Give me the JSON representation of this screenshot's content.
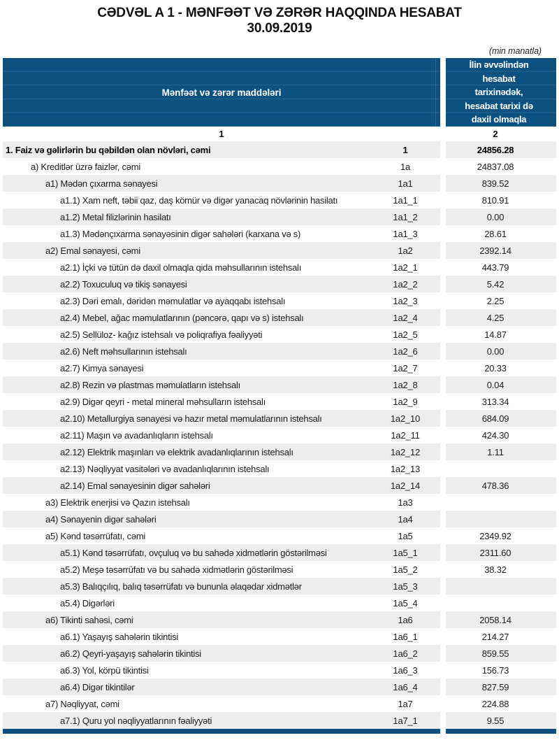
{
  "title": "CƏDVƏL A 1 - MƏNFƏƏT VƏ ZƏRƏR HAQQINDA HESABAT",
  "report_date": "30.09.2019",
  "units_note": "(min manatla)",
  "colors": {
    "header_bg": "#0d5181",
    "row_shade": "#ededed",
    "text": "#1c1c1c"
  },
  "table": {
    "items_header": "Mənfəət və zərər maddələri",
    "value_header_lines": [
      "İlin əvvəlindən",
      "hesabat",
      "tarixinədək,",
      "hesabat tarixi də",
      "daxil olmaqla"
    ],
    "column_numbers": {
      "items": "1",
      "value": "2"
    },
    "rows": [
      {
        "label": "1. Faiz və gəlirlərin bu qəbildən olan növləri, cəmi",
        "code": "1",
        "value": "24856.28",
        "level": 0
      },
      {
        "label": "a) Kreditlər üzrə faizlər, cəmi",
        "code": "1a",
        "value": "24837.08",
        "level": 1
      },
      {
        "label": "a1) Mədən çıxarma sənayesi",
        "code": "1a1",
        "value": "839.52",
        "level": 2
      },
      {
        "label": "a1.1) Xam neft, təbii qaz, daş kömür və digər yanacaq növlərinin hasilatı",
        "code": "1a1_1",
        "value": "810.91",
        "level": 3
      },
      {
        "label": "a1.2) Metal filizlərinin hasilatı",
        "code": "1a1_2",
        "value": "0.00",
        "level": 3
      },
      {
        "label": "a1.3) Mədənçıxarma sənayəsinin digər sahələri (karxana və s)",
        "code": "1a1_3",
        "value": "28.61",
        "level": 3
      },
      {
        "label": "a2) Emal sənayesi, cəmi",
        "code": "1a2",
        "value": "2392.14",
        "level": 2
      },
      {
        "label": "a2.1) İçki və tütün də daxil olmaqla qida məhsullarının istehsalı",
        "code": "1a2_1",
        "value": "443.79",
        "level": 3
      },
      {
        "label": "a2.2) Toxuculuq və tikiş sənayesi",
        "code": "1a2_2",
        "value": "5.42",
        "level": 3
      },
      {
        "label": "a2.3) Dəri emalı, dəridən məmulatlar və ayaqqabı istehsalı",
        "code": "1a2_3",
        "value": "2.25",
        "level": 3
      },
      {
        "label": "a2.4) Mebel, ağac məmulatlarının (pəncərə, qapı və s) istehsalı",
        "code": "1a2_4",
        "value": "4.25",
        "level": 3
      },
      {
        "label": "a2.5) Sellüloz- kağız istehsalı və poliqrafiya fəaliyyəti",
        "code": "1a2_5",
        "value": "14.87",
        "level": 3
      },
      {
        "label": "a2.6) Neft məhsullarının istehsalı",
        "code": "1a2_6",
        "value": "0.00",
        "level": 3
      },
      {
        "label": "a2.7) Kimya sənayesi",
        "code": "1a2_7",
        "value": "20.33",
        "level": 3
      },
      {
        "label": "a2.8) Rezin və plastmas məmulatların istehsalı",
        "code": "1a2_8",
        "value": "0.04",
        "level": 3
      },
      {
        "label": "a2.9) Digər qeyri - metal mineral məhsulların istehsalı",
        "code": "1a2_9",
        "value": "313.34",
        "level": 3
      },
      {
        "label": "a2.10) Metallurgiya sənayesi və hazır metal məmulatlarının istehsalı",
        "code": "1a2_10",
        "value": "684.09",
        "level": 3
      },
      {
        "label": "a2.11) Maşın və avadanlıqların istehsalı",
        "code": "1a2_11",
        "value": "424.30",
        "level": 3
      },
      {
        "label": "a2.12) Elektrik maşınları və elektrik avadanlıqlarının istehsalı",
        "code": "1a2_12",
        "value": "1.11",
        "level": 3
      },
      {
        "label": "a2.13) Nəqliyyat vasitələri və avadanlıqlarının istehsalı",
        "code": "1a2_13",
        "value": "",
        "level": 3
      },
      {
        "label": "a2.14) Emal sənayesinin digər sahələri",
        "code": "1a2_14",
        "value": "478.36",
        "level": 3
      },
      {
        "label": "a3) Elektrik enerjisi və Qazın istehsalı",
        "code": "1a3",
        "value": "",
        "level": 2
      },
      {
        "label": "a4) Sənayenin digər sahələri",
        "code": "1a4",
        "value": "",
        "level": 2
      },
      {
        "label": "a5) Kənd təsərrüfatı, cəmi",
        "code": "1a5",
        "value": "2349.92",
        "level": 2
      },
      {
        "label": "a5.1) Kənd təsərrüfatı, ovçuluq və bu sahədə xidmətlərin göstərilməsi",
        "code": "1a5_1",
        "value": "2311.60",
        "level": 3
      },
      {
        "label": "a5.2) Meşə təsərrüfatı və bu sahədə xidmətlərin göstərilməsi",
        "code": "1a5_2",
        "value": "38.32",
        "level": 3
      },
      {
        "label": "a5.3) Balıqçılıq, balıq təsərrüfatı və bununla əlaqədar xidmətlər",
        "code": "1a5_3",
        "value": "",
        "level": 3
      },
      {
        "label": "a5.4) Digərləri",
        "code": "1a5_4",
        "value": "",
        "level": 3
      },
      {
        "label": "a6) Tikinti sahəsi, cəmi",
        "code": "1a6",
        "value": "2058.14",
        "level": 2
      },
      {
        "label": "a6.1) Yaşayış sahələrin tikintisi",
        "code": "1a6_1",
        "value": "214.27",
        "level": 3
      },
      {
        "label": "a6.2) Qeyri-yaşayış sahələrin tikintisi",
        "code": "1a6_2",
        "value": "859.55",
        "level": 3
      },
      {
        "label": "a6.3) Yol, körpü tikintisi",
        "code": "1a6_3",
        "value": "156.73",
        "level": 3
      },
      {
        "label": "a6.4) Digər tikintilər",
        "code": "1a6_4",
        "value": "827.59",
        "level": 3
      },
      {
        "label": "a7) Nəqliyyat, cəmi",
        "code": "1a7",
        "value": "224.88",
        "level": 2
      },
      {
        "label": "a7.1) Quru yol nəqliyyatlarının fəaliyyəti",
        "code": "1a7_1",
        "value": "9.55",
        "level": 3
      }
    ]
  }
}
